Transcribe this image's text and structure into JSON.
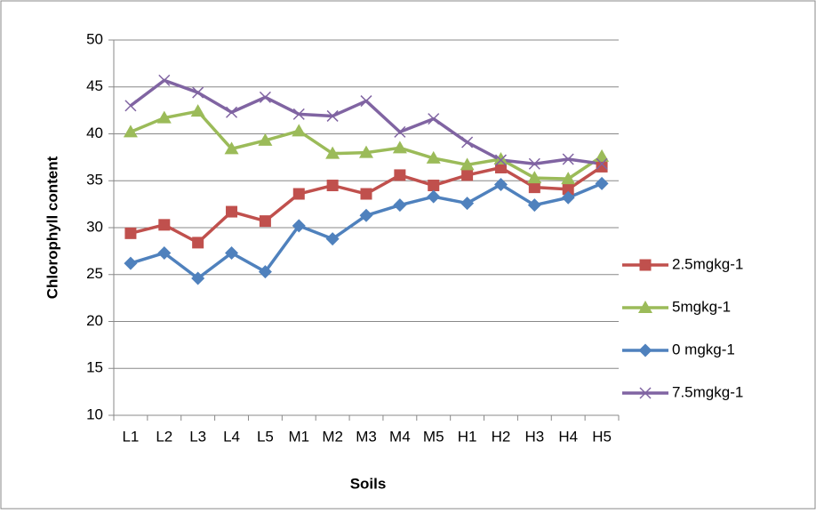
{
  "chart_data": {
    "type": "line",
    "x_label": "Soils",
    "y_label": "Chlorophyll content",
    "categories": [
      "L1",
      "L2",
      "L3",
      "L4",
      "L5",
      "M1",
      "M2",
      "M3",
      "M4",
      "M5",
      "H1",
      "H2",
      "H3",
      "H4",
      "H5"
    ],
    "series": [
      {
        "name": "2.5mgkg-1",
        "color": "#c0504d",
        "marker": "square",
        "values": [
          29.4,
          30.3,
          28.4,
          31.7,
          30.7,
          33.6,
          34.5,
          33.6,
          35.6,
          34.5,
          35.6,
          36.4,
          34.3,
          34.1,
          36.5
        ]
      },
      {
        "name": "5mgkg-1",
        "color": "#9bbb59",
        "marker": "triangle",
        "values": [
          40.2,
          41.7,
          42.4,
          38.4,
          39.3,
          40.3,
          37.9,
          38.0,
          38.5,
          37.4,
          36.7,
          37.3,
          35.3,
          35.2,
          37.6
        ]
      },
      {
        "name": "0 mgkg-1",
        "color": "#4f81bd",
        "marker": "diamond",
        "values": [
          26.2,
          27.3,
          24.6,
          27.3,
          25.3,
          30.2,
          28.8,
          31.3,
          32.4,
          33.3,
          32.6,
          34.6,
          32.4,
          33.2,
          34.7
        ]
      },
      {
        "name": "7.5mgkg-1",
        "color": "#8064a2",
        "marker": "x",
        "values": [
          43.0,
          45.7,
          44.4,
          42.3,
          43.9,
          42.1,
          41.9,
          43.5,
          40.2,
          41.6,
          39.1,
          37.2,
          36.8,
          37.3,
          36.8
        ]
      }
    ],
    "ylim": [
      10,
      50
    ],
    "yticks": [
      10,
      15,
      20,
      25,
      30,
      35,
      40,
      45,
      50
    ],
    "grid": true,
    "legend": "right"
  }
}
